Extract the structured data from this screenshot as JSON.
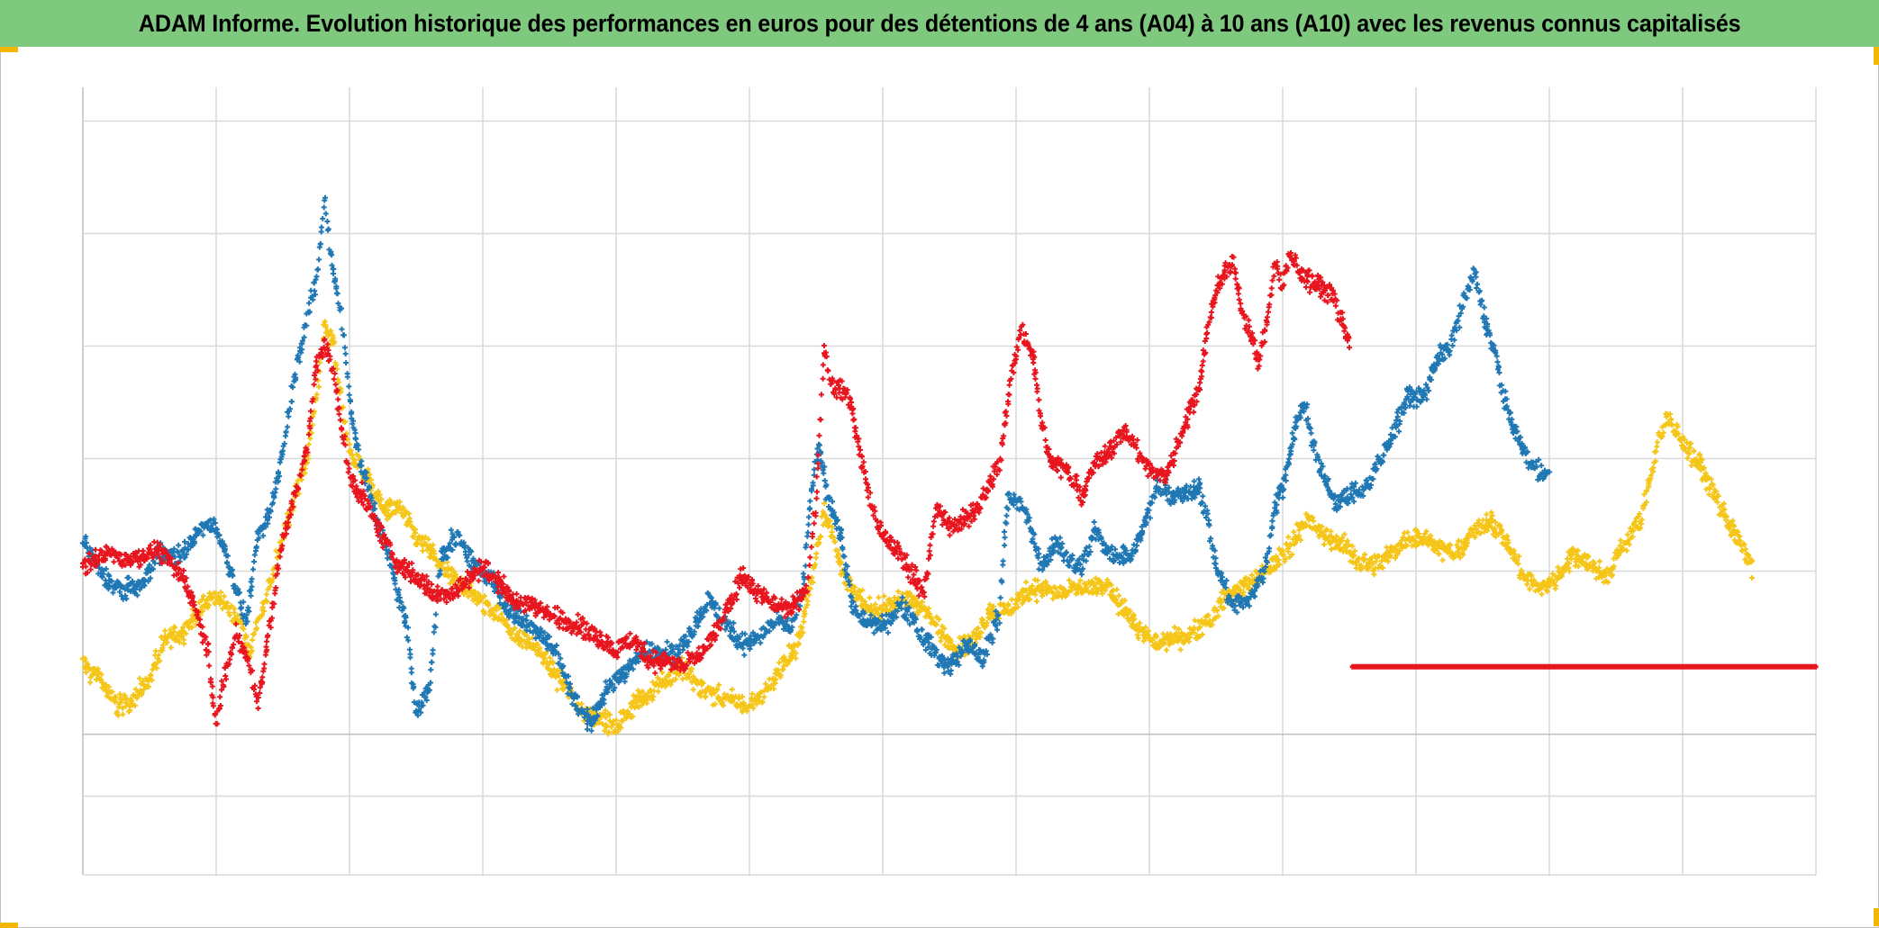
{
  "header": {
    "title": "ADAM Informe. Evolution historique des performances en euros pour des détentions de 4 ans (A04) à 10 ans (A10) avec les revenus connus capitalisés"
  },
  "colors": {
    "title_bg": "#7fc97f",
    "accent_corner": "#f2b705",
    "grid": "#d9d9d9"
  },
  "chart_data": {
    "type": "scatter",
    "title": "ADAM Informe. Evolution historique des performances en euros pour des détentions de 4 ans (A04) à 10 ans (A10) avec les revenus connus capitalisés",
    "xlabel": "",
    "ylabel": "",
    "xlim": [
      0,
      1040
    ],
    "ylim": [
      -25,
      115
    ],
    "grid": true,
    "marker": "plus",
    "x_gridlines": [
      0,
      80,
      160,
      240,
      320,
      400,
      480,
      560,
      640,
      720,
      800,
      880,
      960,
      1040
    ],
    "y_gridlines": [
      -25,
      -11,
      0,
      29,
      49,
      69,
      89,
      109
    ],
    "series": [
      {
        "name": "blue",
        "color": "#1f77b4",
        "end_x": 880,
        "anchors": [
          [
            0,
            35
          ],
          [
            10,
            29
          ],
          [
            20,
            26
          ],
          [
            35,
            26
          ],
          [
            45,
            32
          ],
          [
            60,
            32
          ],
          [
            70,
            36
          ],
          [
            78,
            38
          ],
          [
            82,
            35
          ],
          [
            90,
            28
          ],
          [
            98,
            20
          ],
          [
            105,
            35
          ],
          [
            113,
            40
          ],
          [
            120,
            50
          ],
          [
            125,
            60
          ],
          [
            130,
            68
          ],
          [
            135,
            75
          ],
          [
            140,
            80
          ],
          [
            145,
            95
          ],
          [
            150,
            83
          ],
          [
            155,
            75
          ],
          [
            160,
            60
          ],
          [
            165,
            50
          ],
          [
            175,
            40
          ],
          [
            185,
            30
          ],
          [
            195,
            18
          ],
          [
            200,
            4
          ],
          [
            208,
            8
          ],
          [
            215,
            32
          ],
          [
            225,
            35
          ],
          [
            235,
            30
          ],
          [
            245,
            28
          ],
          [
            255,
            22
          ],
          [
            265,
            20
          ],
          [
            275,
            18
          ],
          [
            285,
            14
          ],
          [
            295,
            6
          ],
          [
            305,
            2
          ],
          [
            315,
            8
          ],
          [
            325,
            11
          ],
          [
            335,
            14
          ],
          [
            345,
            15
          ],
          [
            355,
            14
          ],
          [
            365,
            18
          ],
          [
            375,
            24
          ],
          [
            385,
            20
          ],
          [
            395,
            16
          ],
          [
            405,
            17
          ],
          [
            415,
            20
          ],
          [
            425,
            19
          ],
          [
            432,
            25
          ],
          [
            437,
            43
          ],
          [
            442,
            51
          ],
          [
            447,
            42
          ],
          [
            455,
            35
          ],
          [
            462,
            22
          ],
          [
            470,
            20
          ],
          [
            480,
            19
          ],
          [
            490,
            23
          ],
          [
            495,
            22
          ],
          [
            505,
            17
          ],
          [
            515,
            13
          ],
          [
            520,
            12
          ],
          [
            530,
            16
          ],
          [
            540,
            13
          ],
          [
            550,
            22
          ],
          [
            555,
            42
          ],
          [
            565,
            40
          ],
          [
            575,
            30
          ],
          [
            585,
            34
          ],
          [
            595,
            30
          ],
          [
            600,
            30
          ],
          [
            607,
            36
          ],
          [
            617,
            32
          ],
          [
            630,
            32
          ],
          [
            645,
            44
          ],
          [
            655,
            42
          ],
          [
            665,
            43
          ],
          [
            670,
            44
          ],
          [
            675,
            38
          ],
          [
            680,
            30
          ],
          [
            690,
            23
          ],
          [
            700,
            24
          ],
          [
            710,
            30
          ],
          [
            715,
            40
          ],
          [
            720,
            44
          ],
          [
            728,
            55
          ],
          [
            733,
            59
          ],
          [
            738,
            52
          ],
          [
            745,
            45
          ],
          [
            753,
            41
          ],
          [
            763,
            43
          ],
          [
            770,
            44
          ],
          [
            780,
            49
          ],
          [
            788,
            55
          ],
          [
            795,
            60
          ],
          [
            805,
            60
          ],
          [
            813,
            67
          ],
          [
            820,
            68
          ],
          [
            828,
            77
          ],
          [
            835,
            82
          ],
          [
            842,
            73
          ],
          [
            848,
            67
          ],
          [
            855,
            57
          ],
          [
            865,
            50
          ],
          [
            872,
            47
          ],
          [
            880,
            46
          ]
        ]
      },
      {
        "name": "red",
        "color": "#e8141e",
        "end_x": 760,
        "anchors": [
          [
            0,
            30
          ],
          [
            15,
            32
          ],
          [
            30,
            31
          ],
          [
            45,
            33
          ],
          [
            60,
            28
          ],
          [
            68,
            22
          ],
          [
            75,
            15
          ],
          [
            80,
            2
          ],
          [
            85,
            10
          ],
          [
            92,
            18
          ],
          [
            100,
            13
          ],
          [
            105,
            5
          ],
          [
            110,
            15
          ],
          [
            115,
            25
          ],
          [
            120,
            35
          ],
          [
            125,
            40
          ],
          [
            130,
            45
          ],
          [
            135,
            52
          ],
          [
            140,
            65
          ],
          [
            145,
            70
          ],
          [
            150,
            65
          ],
          [
            155,
            55
          ],
          [
            160,
            46
          ],
          [
            170,
            41
          ],
          [
            180,
            35
          ],
          [
            190,
            30
          ],
          [
            200,
            28
          ],
          [
            210,
            25
          ],
          [
            220,
            25
          ],
          [
            230,
            27
          ],
          [
            240,
            30
          ],
          [
            250,
            27
          ],
          [
            260,
            23
          ],
          [
            270,
            23
          ],
          [
            280,
            21
          ],
          [
            290,
            20
          ],
          [
            300,
            19
          ],
          [
            310,
            17
          ],
          [
            320,
            15
          ],
          [
            330,
            17
          ],
          [
            340,
            13
          ],
          [
            350,
            13
          ],
          [
            360,
            12
          ],
          [
            370,
            14
          ],
          [
            380,
            18
          ],
          [
            390,
            24
          ],
          [
            395,
            28
          ],
          [
            405,
            25
          ],
          [
            415,
            23
          ],
          [
            425,
            22
          ],
          [
            435,
            27
          ],
          [
            440,
            42
          ],
          [
            445,
            68
          ],
          [
            450,
            62
          ],
          [
            460,
            60
          ],
          [
            467,
            49
          ],
          [
            474,
            40
          ],
          [
            480,
            35
          ],
          [
            490,
            32
          ],
          [
            495,
            30
          ],
          [
            505,
            25
          ],
          [
            512,
            40
          ],
          [
            520,
            37
          ],
          [
            530,
            38
          ],
          [
            540,
            42
          ],
          [
            550,
            48
          ],
          [
            558,
            65
          ],
          [
            563,
            72
          ],
          [
            570,
            68
          ],
          [
            575,
            56
          ],
          [
            580,
            49
          ],
          [
            590,
            47
          ],
          [
            600,
            42
          ],
          [
            607,
            48
          ],
          [
            615,
            50
          ],
          [
            625,
            54
          ],
          [
            630,
            52
          ],
          [
            640,
            47
          ],
          [
            650,
            46
          ],
          [
            660,
            54
          ],
          [
            670,
            62
          ],
          [
            675,
            72
          ],
          [
            680,
            79
          ],
          [
            685,
            82
          ],
          [
            690,
            84
          ],
          [
            695,
            76
          ],
          [
            700,
            72
          ],
          [
            705,
            66
          ],
          [
            710,
            72
          ],
          [
            715,
            84
          ],
          [
            720,
            80
          ],
          [
            725,
            85
          ],
          [
            730,
            82
          ],
          [
            740,
            80
          ],
          [
            750,
            78
          ],
          [
            757,
            72
          ],
          [
            760,
            70
          ]
        ]
      },
      {
        "name": "yellow",
        "color": "#f5c518",
        "end_x": 1002,
        "anchors": [
          [
            0,
            12
          ],
          [
            10,
            10
          ],
          [
            20,
            5
          ],
          [
            30,
            6
          ],
          [
            40,
            10
          ],
          [
            50,
            17
          ],
          [
            60,
            18
          ],
          [
            70,
            22
          ],
          [
            80,
            25
          ],
          [
            88,
            22
          ],
          [
            95,
            20
          ],
          [
            100,
            14
          ],
          [
            105,
            20
          ],
          [
            112,
            26
          ],
          [
            120,
            35
          ],
          [
            128,
            43
          ],
          [
            135,
            50
          ],
          [
            140,
            60
          ],
          [
            145,
            72
          ],
          [
            150,
            70
          ],
          [
            155,
            60
          ],
          [
            160,
            50
          ],
          [
            170,
            46
          ],
          [
            180,
            40
          ],
          [
            190,
            40
          ],
          [
            200,
            35
          ],
          [
            210,
            32
          ],
          [
            220,
            28
          ],
          [
            230,
            26
          ],
          [
            240,
            23
          ],
          [
            250,
            22
          ],
          [
            260,
            17
          ],
          [
            270,
            16
          ],
          [
            280,
            12
          ],
          [
            290,
            8
          ],
          [
            300,
            4
          ],
          [
            310,
            3
          ],
          [
            320,
            1
          ],
          [
            330,
            5
          ],
          [
            340,
            7
          ],
          [
            350,
            10
          ],
          [
            360,
            12
          ],
          [
            370,
            8
          ],
          [
            380,
            7
          ],
          [
            390,
            6
          ],
          [
            400,
            5
          ],
          [
            410,
            8
          ],
          [
            420,
            12
          ],
          [
            430,
            17
          ],
          [
            435,
            24
          ],
          [
            440,
            32
          ],
          [
            445,
            40
          ],
          [
            450,
            35
          ],
          [
            457,
            28
          ],
          [
            465,
            24
          ],
          [
            475,
            22
          ],
          [
            485,
            23
          ],
          [
            495,
            24
          ],
          [
            505,
            22
          ],
          [
            515,
            18
          ],
          [
            525,
            15
          ],
          [
            535,
            17
          ],
          [
            545,
            22
          ],
          [
            555,
            22
          ],
          [
            565,
            25
          ],
          [
            575,
            26
          ],
          [
            585,
            25
          ],
          [
            600,
            26
          ],
          [
            615,
            26
          ],
          [
            625,
            22
          ],
          [
            635,
            18
          ],
          [
            645,
            16
          ],
          [
            655,
            17
          ],
          [
            665,
            18
          ],
          [
            675,
            20
          ],
          [
            685,
            24
          ],
          [
            695,
            26
          ],
          [
            705,
            28
          ],
          [
            715,
            30
          ],
          [
            725,
            34
          ],
          [
            735,
            38
          ],
          [
            745,
            35
          ],
          [
            755,
            34
          ],
          [
            765,
            31
          ],
          [
            775,
            30
          ],
          [
            785,
            32
          ],
          [
            795,
            35
          ],
          [
            805,
            35
          ],
          [
            815,
            33
          ],
          [
            825,
            32
          ],
          [
            835,
            36
          ],
          [
            845,
            38
          ],
          [
            855,
            34
          ],
          [
            865,
            28
          ],
          [
            875,
            26
          ],
          [
            885,
            28
          ],
          [
            895,
            32
          ],
          [
            905,
            30
          ],
          [
            915,
            28
          ],
          [
            925,
            34
          ],
          [
            935,
            38
          ],
          [
            940,
            45
          ],
          [
            945,
            52
          ],
          [
            950,
            56
          ],
          [
            960,
            52
          ],
          [
            970,
            48
          ],
          [
            980,
            42
          ],
          [
            990,
            36
          ],
          [
            1002,
            30
          ]
        ]
      },
      {
        "name": "flat-red",
        "color": "#e8141e",
        "start_x": 762,
        "end_x": 1040,
        "level": 12
      }
    ]
  }
}
